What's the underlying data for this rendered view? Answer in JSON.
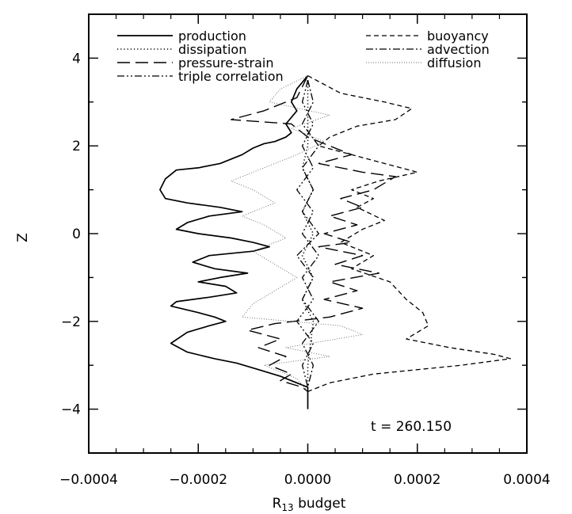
{
  "chart_data": {
    "type": "line",
    "title": "",
    "xlabel": "R",
    "xlabel_sub": "13",
    "xlabel_suffix": " budget",
    "ylabel": "Z",
    "xlim": [
      -0.0004,
      0.0004
    ],
    "ylim": [
      -5,
      5
    ],
    "xticks": [
      "-0.0004",
      "-0.0002",
      "0.0000",
      "0.0002",
      "0.0004"
    ],
    "yticks": [
      "-4",
      "-2",
      "0",
      "2",
      "4"
    ],
    "grid": false,
    "legend_placement": "top",
    "annotation": "t  =  260.150",
    "series": [
      {
        "name": "production",
        "dash": "solid",
        "points": [
          [
            0.0,
            3.6
          ],
          [
            -2e-05,
            3.3
          ],
          [
            -3e-05,
            3.0
          ],
          [
            -2e-05,
            2.8
          ],
          [
            -4e-05,
            2.5
          ],
          [
            -3e-05,
            2.3
          ],
          [
            -4e-05,
            2.2
          ],
          [
            -6e-05,
            2.1
          ],
          [
            -8e-05,
            2.05
          ],
          [
            -0.0001,
            1.95
          ],
          [
            -0.00012,
            1.8
          ],
          [
            -0.00016,
            1.6
          ],
          [
            -0.0002,
            1.5
          ],
          [
            -0.00024,
            1.45
          ],
          [
            -0.00026,
            1.25
          ],
          [
            -0.00027,
            1.0
          ],
          [
            -0.00026,
            0.8
          ],
          [
            -0.00022,
            0.7
          ],
          [
            -0.00016,
            0.6
          ],
          [
            -0.00012,
            0.5
          ],
          [
            -0.00018,
            0.4
          ],
          [
            -0.00022,
            0.25
          ],
          [
            -0.00024,
            0.1
          ],
          [
            -0.0002,
            0.0
          ],
          [
            -0.00014,
            -0.1
          ],
          [
            -0.0001,
            -0.2
          ],
          [
            -7e-05,
            -0.3
          ],
          [
            -0.0001,
            -0.4
          ],
          [
            -0.00018,
            -0.5
          ],
          [
            -0.00021,
            -0.65
          ],
          [
            -0.00017,
            -0.8
          ],
          [
            -0.00011,
            -0.9
          ],
          [
            -0.00016,
            -1.0
          ],
          [
            -0.0002,
            -1.1
          ],
          [
            -0.00015,
            -1.2
          ],
          [
            -0.00013,
            -1.35
          ],
          [
            -0.00018,
            -1.45
          ],
          [
            -0.00024,
            -1.55
          ],
          [
            -0.00025,
            -1.65
          ],
          [
            -0.0002,
            -1.8
          ],
          [
            -0.00017,
            -1.9
          ],
          [
            -0.00015,
            -2.0
          ],
          [
            -0.00018,
            -2.1
          ],
          [
            -0.00022,
            -2.25
          ],
          [
            -0.00025,
            -2.5
          ],
          [
            -0.00022,
            -2.7
          ],
          [
            -0.00017,
            -2.85
          ],
          [
            -0.00013,
            -2.95
          ],
          [
            -9e-05,
            -3.1
          ],
          [
            -5e-05,
            -3.25
          ],
          [
            -2e-05,
            -3.4
          ],
          [
            0.0,
            -3.5
          ],
          [
            0.0,
            -4.0
          ]
        ]
      },
      {
        "name": "dissipation",
        "dash": "dotted",
        "points": [
          [
            0.0,
            3.5
          ],
          [
            0.0,
            2.0
          ],
          [
            -1e-05,
            1.5
          ],
          [
            1e-05,
            1.0
          ],
          [
            -1e-05,
            0.5
          ],
          [
            1e-05,
            0.0
          ],
          [
            -1e-05,
            -0.5
          ],
          [
            1e-05,
            -1.0
          ],
          [
            -1e-05,
            -1.5
          ],
          [
            1e-05,
            -2.0
          ],
          [
            0.0,
            -3.0
          ],
          [
            0.0,
            -3.5
          ]
        ]
      },
      {
        "name": "pressure-strain",
        "dash": "long-dash",
        "points": [
          [
            0.0,
            3.6
          ],
          [
            -2e-05,
            3.1
          ],
          [
            -8e-05,
            2.8
          ],
          [
            -0.00014,
            2.6
          ],
          [
            -3e-05,
            2.5
          ],
          [
            0.0,
            2.2
          ],
          [
            4e-05,
            2.0
          ],
          [
            8e-05,
            1.8
          ],
          [
            2e-05,
            1.6
          ],
          [
            0.0001,
            1.4
          ],
          [
            0.00016,
            1.3
          ],
          [
            0.00012,
            1.0
          ],
          [
            6e-05,
            0.8
          ],
          [
            0.0001,
            0.6
          ],
          [
            4e-05,
            0.4
          ],
          [
            9e-05,
            0.2
          ],
          [
            3e-05,
            0.0
          ],
          [
            8e-05,
            -0.2
          ],
          [
            2e-05,
            -0.3
          ],
          [
            0.0001,
            -0.5
          ],
          [
            5e-05,
            -0.7
          ],
          [
            0.00013,
            -0.9
          ],
          [
            4e-05,
            -1.1
          ],
          [
            9e-05,
            -1.3
          ],
          [
            3e-05,
            -1.5
          ],
          [
            0.0001,
            -1.7
          ],
          [
            4e-05,
            -1.9
          ],
          [
            -6e-05,
            -2.05
          ],
          [
            -0.00011,
            -2.2
          ],
          [
            -5e-05,
            -2.4
          ],
          [
            -9e-05,
            -2.6
          ],
          [
            -4e-05,
            -2.8
          ],
          [
            -7e-05,
            -3.0
          ],
          [
            -3e-05,
            -3.2
          ],
          [
            -5e-05,
            -3.35
          ],
          [
            -1e-05,
            -3.5
          ],
          [
            0.0,
            -3.6
          ]
        ]
      },
      {
        "name": "triple correlation",
        "dash": "dash-dot-dot",
        "points": [
          [
            0.0,
            3.5
          ],
          [
            -1e-05,
            3.0
          ],
          [
            1e-05,
            2.5
          ],
          [
            -1e-05,
            2.0
          ],
          [
            1e-05,
            1.5
          ],
          [
            -2e-05,
            1.0
          ],
          [
            1e-05,
            0.5
          ],
          [
            -1e-05,
            0.0
          ],
          [
            2e-05,
            -0.5
          ],
          [
            -1e-05,
            -1.0
          ],
          [
            1e-05,
            -1.5
          ],
          [
            -2e-05,
            -2.0
          ],
          [
            1e-05,
            -2.5
          ],
          [
            -1e-05,
            -3.0
          ],
          [
            0.0,
            -3.5
          ]
        ]
      },
      {
        "name": "buoyancy",
        "dash": "short-dash",
        "points": [
          [
            0.0,
            3.6
          ],
          [
            6e-05,
            3.2
          ],
          [
            0.00014,
            3.0
          ],
          [
            0.00019,
            2.85
          ],
          [
            0.00016,
            2.6
          ],
          [
            9e-05,
            2.45
          ],
          [
            4e-05,
            2.2
          ],
          [
            2e-05,
            2.0
          ],
          [
            8e-05,
            1.8
          ],
          [
            0.00014,
            1.6
          ],
          [
            0.0002,
            1.4
          ],
          [
            0.00013,
            1.2
          ],
          [
            8e-05,
            1.0
          ],
          [
            0.00012,
            0.8
          ],
          [
            9e-05,
            0.6
          ],
          [
            0.00014,
            0.3
          ],
          [
            0.0001,
            0.1
          ],
          [
            6e-05,
            -0.2
          ],
          [
            0.00012,
            -0.5
          ],
          [
            8e-05,
            -0.8
          ],
          [
            0.00015,
            -1.1
          ],
          [
            0.00018,
            -1.5
          ],
          [
            0.00021,
            -1.8
          ],
          [
            0.00022,
            -2.1
          ],
          [
            0.00018,
            -2.4
          ],
          [
            0.00026,
            -2.6
          ],
          [
            0.00034,
            -2.75
          ],
          [
            0.00037,
            -2.85
          ],
          [
            0.00028,
            -3.0
          ],
          [
            0.00012,
            -3.2
          ],
          [
            4e-05,
            -3.4
          ],
          [
            0.0,
            -3.6
          ]
        ]
      },
      {
        "name": "advection",
        "dash": "dash-dot",
        "points": [
          [
            0.0,
            3.5
          ],
          [
            1e-05,
            3.0
          ],
          [
            -1e-05,
            2.5
          ],
          [
            2e-05,
            2.0
          ],
          [
            -1e-05,
            1.5
          ],
          [
            1e-05,
            1.0
          ],
          [
            -1e-05,
            0.5
          ],
          [
            2e-05,
            0.0
          ],
          [
            -2e-05,
            -0.5
          ],
          [
            1e-05,
            -1.0
          ],
          [
            -1e-05,
            -1.5
          ],
          [
            2e-05,
            -2.0
          ],
          [
            -1e-05,
            -2.5
          ],
          [
            1e-05,
            -3.0
          ],
          [
            0.0,
            -3.5
          ]
        ]
      },
      {
        "name": "diffusion",
        "dash": "fine-dotted",
        "points": [
          [
            0.0,
            3.6
          ],
          [
            -5e-05,
            3.3
          ],
          [
            -7e-05,
            3.0
          ],
          [
            4e-05,
            2.7
          ],
          [
            -3e-05,
            2.4
          ],
          [
            3e-05,
            2.1
          ],
          [
            -2e-05,
            1.8
          ],
          [
            -8e-05,
            1.5
          ],
          [
            -0.00014,
            1.2
          ],
          [
            -0.0001,
            1.0
          ],
          [
            -6e-05,
            0.7
          ],
          [
            -0.00012,
            0.4
          ],
          [
            -8e-05,
            0.2
          ],
          [
            -4e-05,
            -0.1
          ],
          [
            -0.0001,
            -0.4
          ],
          [
            -6e-05,
            -0.7
          ],
          [
            -2e-05,
            -1.0
          ],
          [
            -6e-05,
            -1.3
          ],
          [
            -0.0001,
            -1.6
          ],
          [
            -0.00012,
            -1.9
          ],
          [
            6e-05,
            -2.1
          ],
          [
            0.0001,
            -2.3
          ],
          [
            -4e-05,
            -2.6
          ],
          [
            4e-05,
            -2.8
          ],
          [
            -8e-05,
            -3.0
          ],
          [
            -2e-05,
            -3.3
          ],
          [
            0.0,
            -3.6
          ]
        ]
      }
    ]
  },
  "colors": {
    "line": "#000000",
    "background": "#ffffff"
  }
}
